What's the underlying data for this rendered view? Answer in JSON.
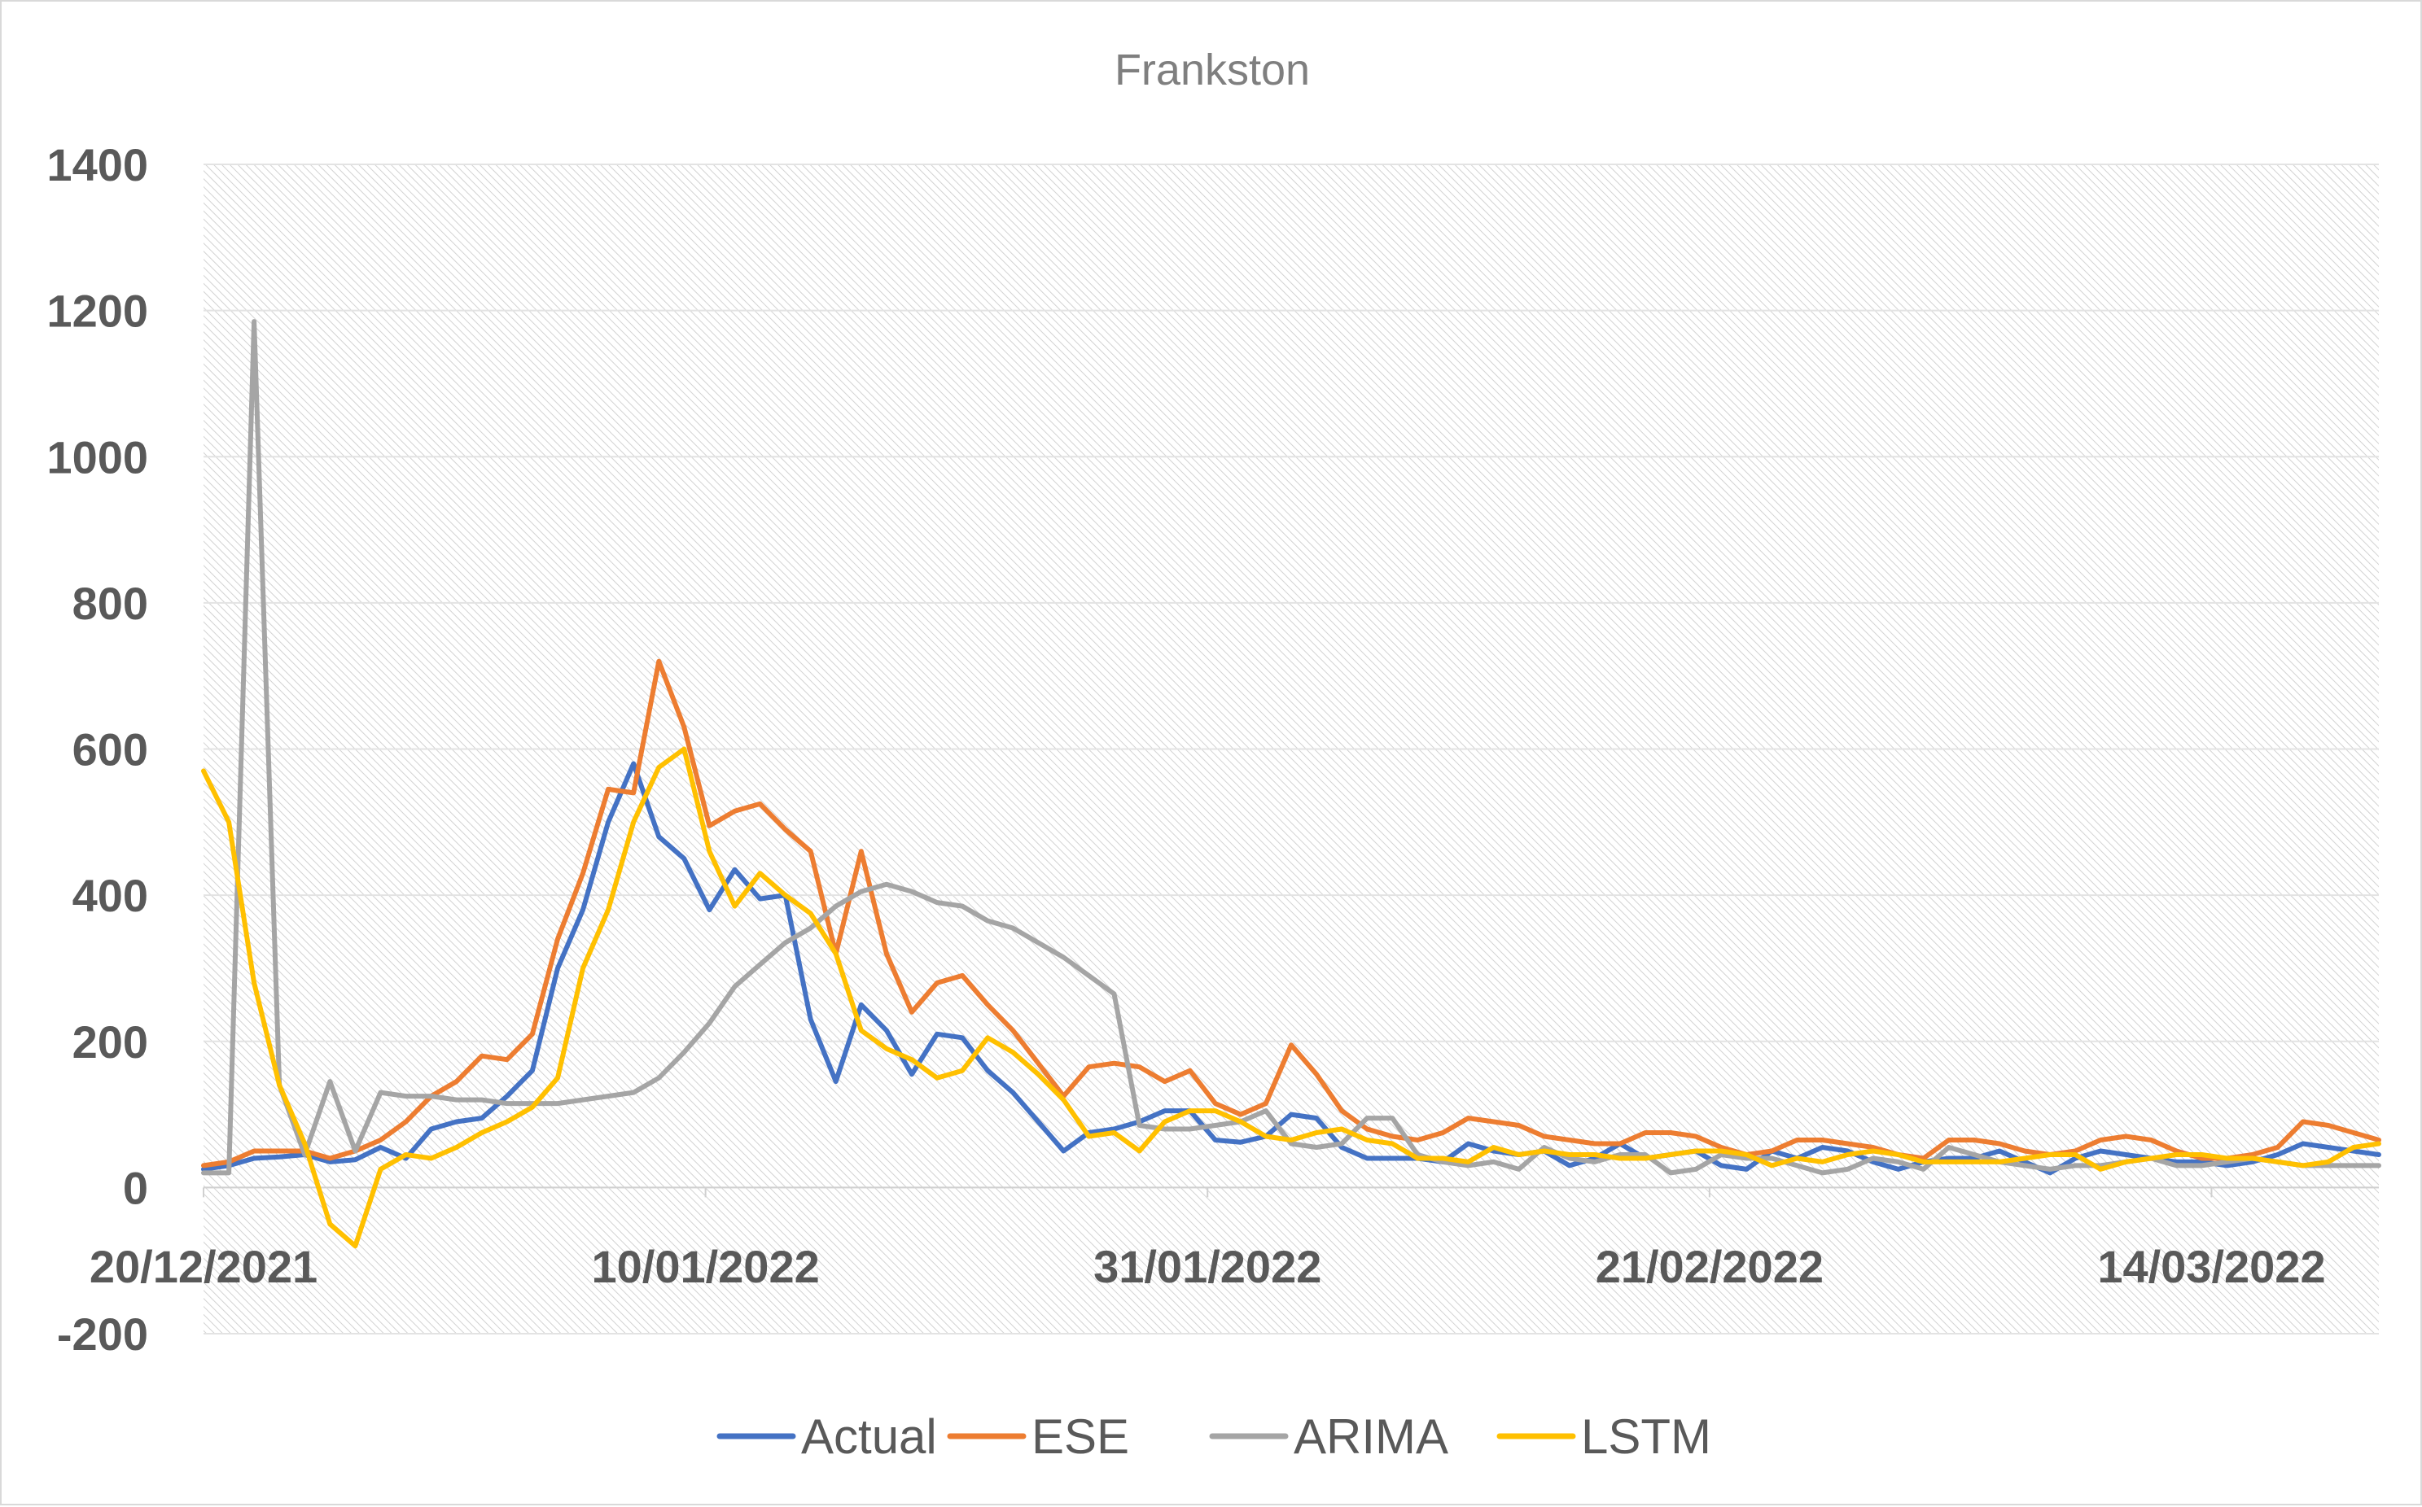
{
  "chart_data": {
    "type": "line",
    "title": "Frankston",
    "xlabel": "",
    "ylabel": "",
    "ylim": [
      -200,
      1400
    ],
    "yticks": [
      -200,
      0,
      200,
      400,
      600,
      800,
      1000,
      1200,
      1400
    ],
    "ytick_labels": [
      "-200",
      "0",
      "200",
      "400",
      "600",
      "800",
      "1000",
      "1200",
      "1400"
    ],
    "xlim": [
      "2021-12-20",
      "2022-03-21"
    ],
    "xtick_dates": [
      "2021-12-20",
      "2022-01-10",
      "2022-01-31",
      "2022-02-21",
      "2022-03-14"
    ],
    "xtick_labels": [
      "20/12/2021",
      "10/01/2022",
      "31/01/2022",
      "21/02/2022",
      "14/03/2022"
    ],
    "grid": true,
    "legend_position": "bottom",
    "start_date": "2021-12-20",
    "series": [
      {
        "name": "Actual",
        "color": "#4472c4",
        "values": [
          25,
          30,
          40,
          42,
          45,
          35,
          38,
          55,
          40,
          80,
          90,
          95,
          125,
          160,
          300,
          380,
          500,
          580,
          480,
          450,
          380,
          435,
          395,
          400,
          230,
          145,
          250,
          215,
          155,
          210,
          205,
          160,
          130,
          90,
          50,
          75,
          80,
          90,
          105,
          105,
          65,
          62,
          70,
          100,
          95,
          55,
          40,
          40,
          40,
          35,
          60,
          50,
          45,
          50,
          30,
          40,
          60,
          40,
          45,
          50,
          30,
          25,
          50,
          40,
          55,
          50,
          35,
          25,
          35,
          40,
          40,
          50,
          35,
          20,
          40,
          50,
          45,
          40,
          35,
          35,
          30,
          35,
          45,
          60,
          55,
          50,
          45
        ]
      },
      {
        "name": "ESE",
        "color": "#ed7d31",
        "values": [
          30,
          35,
          50,
          50,
          50,
          40,
          50,
          65,
          90,
          125,
          145,
          180,
          175,
          210,
          340,
          430,
          545,
          540,
          720,
          630,
          495,
          515,
          525,
          490,
          460,
          320,
          460,
          320,
          240,
          280,
          290,
          250,
          215,
          170,
          125,
          165,
          170,
          165,
          145,
          160,
          115,
          100,
          115,
          195,
          155,
          105,
          80,
          70,
          65,
          75,
          95,
          90,
          85,
          70,
          65,
          60,
          60,
          75,
          75,
          70,
          55,
          45,
          50,
          65,
          65,
          60,
          55,
          45,
          40,
          65,
          65,
          60,
          50,
          45,
          50,
          65,
          70,
          65,
          50,
          40,
          40,
          45,
          55,
          90,
          85,
          75,
          65
        ]
      },
      {
        "name": "ARIMA",
        "color": "#a5a5a5",
        "values": [
          20,
          20,
          1185,
          140,
          45,
          145,
          50,
          130,
          125,
          125,
          120,
          120,
          115,
          115,
          115,
          120,
          125,
          130,
          150,
          185,
          225,
          275,
          305,
          335,
          355,
          385,
          405,
          415,
          405,
          390,
          385,
          365,
          355,
          335,
          315,
          290,
          265,
          85,
          80,
          80,
          85,
          90,
          105,
          60,
          55,
          60,
          95,
          95,
          45,
          35,
          30,
          35,
          25,
          55,
          40,
          35,
          45,
          45,
          20,
          25,
          45,
          40,
          40,
          30,
          20,
          25,
          40,
          35,
          25,
          55,
          45,
          35,
          30,
          25,
          30,
          30,
          35,
          40,
          30,
          30,
          35,
          40,
          35,
          30,
          30,
          30,
          30
        ]
      },
      {
        "name": "LSTM",
        "color": "#ffc000",
        "values": [
          570,
          500,
          280,
          140,
          60,
          -50,
          -80,
          25,
          45,
          40,
          55,
          75,
          90,
          110,
          150,
          300,
          380,
          500,
          575,
          600,
          460,
          385,
          430,
          400,
          375,
          320,
          215,
          190,
          175,
          150,
          160,
          205,
          185,
          155,
          120,
          70,
          75,
          50,
          90,
          105,
          105,
          90,
          70,
          65,
          75,
          80,
          65,
          60,
          40,
          40,
          35,
          55,
          45,
          50,
          45,
          45,
          40,
          40,
          45,
          50,
          50,
          45,
          30,
          40,
          35,
          45,
          50,
          45,
          35,
          35,
          35,
          35,
          40,
          45,
          45,
          25,
          35,
          40,
          45,
          45,
          40,
          40,
          35,
          30,
          35,
          55,
          60
        ]
      }
    ]
  }
}
